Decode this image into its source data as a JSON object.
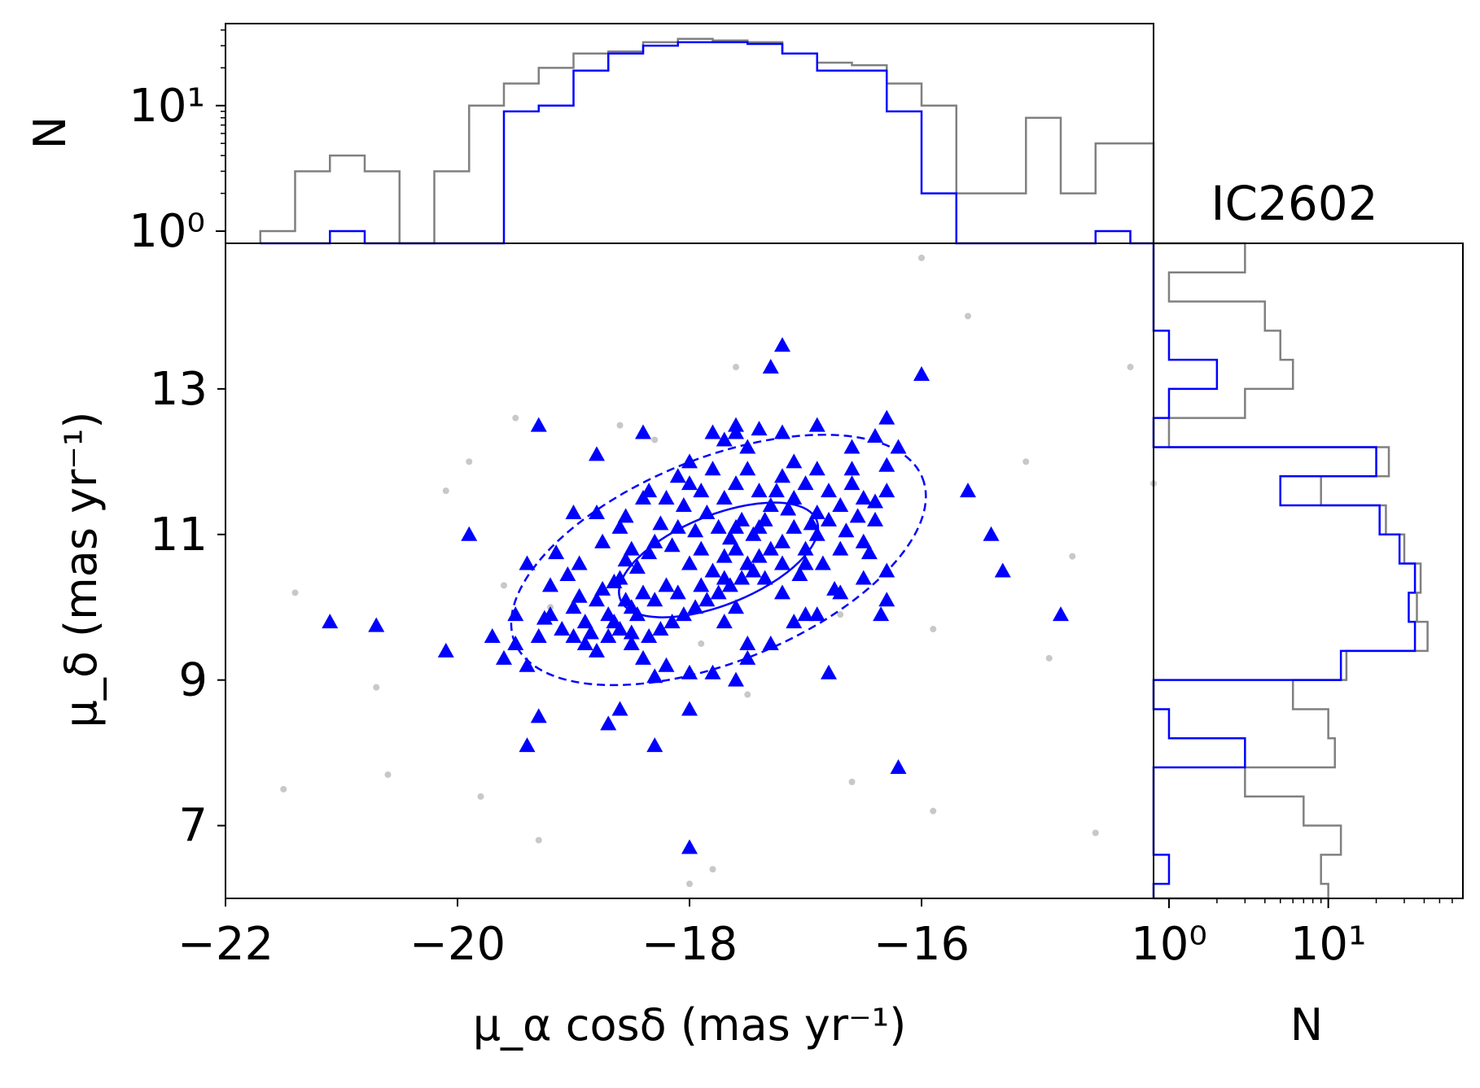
{
  "chart_data": {
    "type": "scatter",
    "title": "IC2602",
    "colors": {
      "members": "#0000ff",
      "field": "#c8c8c8",
      "field_hist": "#808080",
      "axes": "#000000"
    },
    "scatter": {
      "xlabel": "μ_α cosδ (mas yr⁻¹)",
      "ylabel": "μ_δ (mas yr⁻¹)",
      "xlim": [
        -22,
        -14.0
      ],
      "ylim": [
        6.0,
        15.0
      ],
      "xticks": [
        -22,
        -20,
        -18,
        -16
      ],
      "yticks": [
        7,
        9,
        11,
        13
      ],
      "grid": false,
      "members": {
        "marker": "triangle",
        "points": [
          [
            -17.2,
            13.6
          ],
          [
            -17.3,
            13.3
          ],
          [
            -16.0,
            13.2
          ],
          [
            -19.3,
            12.5
          ],
          [
            -18.4,
            12.4
          ],
          [
            -16.3,
            12.6
          ],
          [
            -16.9,
            12.5
          ],
          [
            -17.6,
            12.5
          ],
          [
            -17.4,
            12.45
          ],
          [
            -16.2,
            12.2
          ],
          [
            -18.8,
            12.1
          ],
          [
            -17.8,
            12.4
          ],
          [
            -17.7,
            12.3
          ],
          [
            -17.5,
            12.2
          ],
          [
            -17.1,
            12.0
          ],
          [
            -16.6,
            11.9
          ],
          [
            -16.3,
            11.95
          ],
          [
            -15.6,
            11.6
          ],
          [
            -15.4,
            11.0
          ],
          [
            -15.3,
            10.5
          ],
          [
            -14.8,
            9.9
          ],
          [
            -16.2,
            7.8
          ],
          [
            -19.0,
            11.3
          ],
          [
            -18.8,
            11.3
          ],
          [
            -18.6,
            11.1
          ],
          [
            -18.5,
            10.8
          ],
          [
            -18.3,
            10.9
          ],
          [
            -18.2,
            11.5
          ],
          [
            -18.1,
            11.8
          ],
          [
            -18.0,
            11.7
          ],
          [
            -17.9,
            11.6
          ],
          [
            -17.8,
            11.9
          ],
          [
            -17.7,
            11.5
          ],
          [
            -17.6,
            11.7
          ],
          [
            -17.5,
            11.9
          ],
          [
            -17.4,
            11.6
          ],
          [
            -17.3,
            11.4
          ],
          [
            -17.2,
            11.8
          ],
          [
            -17.1,
            11.5
          ],
          [
            -17.0,
            11.7
          ],
          [
            -16.9,
            11.9
          ],
          [
            -16.8,
            11.6
          ],
          [
            -16.7,
            11.4
          ],
          [
            -16.6,
            11.7
          ],
          [
            -16.5,
            11.5
          ],
          [
            -16.4,
            11.2
          ],
          [
            -16.3,
            11.6
          ],
          [
            -16.5,
            10.9
          ],
          [
            -16.7,
            10.8
          ],
          [
            -16.9,
            11.0
          ],
          [
            -17.0,
            10.6
          ],
          [
            -17.2,
            10.9
          ],
          [
            -17.4,
            10.7
          ],
          [
            -17.6,
            10.8
          ],
          [
            -17.8,
            10.5
          ],
          [
            -18.0,
            10.6
          ],
          [
            -18.2,
            10.3
          ],
          [
            -18.4,
            10.2
          ],
          [
            -18.6,
            10.4
          ],
          [
            -18.8,
            10.1
          ],
          [
            -19.0,
            10.0
          ],
          [
            -19.2,
            10.3
          ],
          [
            -19.4,
            10.6
          ],
          [
            -19.5,
            9.9
          ],
          [
            -19.3,
            9.6
          ],
          [
            -19.1,
            9.7
          ],
          [
            -18.9,
            9.8
          ],
          [
            -18.7,
            9.9
          ],
          [
            -18.5,
            10.0
          ],
          [
            -18.3,
            10.1
          ],
          [
            -18.1,
            10.2
          ],
          [
            -17.9,
            10.3
          ],
          [
            -17.7,
            10.4
          ],
          [
            -17.5,
            10.6
          ],
          [
            -17.3,
            10.8
          ],
          [
            -17.1,
            11.1
          ],
          [
            -16.9,
            11.3
          ],
          [
            -18.7,
            9.6
          ],
          [
            -18.6,
            9.7
          ],
          [
            -18.9,
            9.5
          ],
          [
            -19.0,
            9.6
          ],
          [
            -18.8,
            9.4
          ],
          [
            -18.5,
            9.5
          ],
          [
            -18.4,
            9.3
          ],
          [
            -18.2,
            9.2
          ],
          [
            -18.0,
            9.1
          ],
          [
            -17.8,
            9.1
          ],
          [
            -18.3,
            9.05
          ],
          [
            -18.6,
            8.6
          ],
          [
            -18.0,
            8.6
          ],
          [
            -17.6,
            9.0
          ],
          [
            -17.5,
            9.3
          ],
          [
            -17.3,
            9.5
          ],
          [
            -17.1,
            9.8
          ],
          [
            -16.9,
            9.9
          ],
          [
            -16.7,
            10.2
          ],
          [
            -16.5,
            10.4
          ],
          [
            -16.3,
            10.5
          ],
          [
            -16.3,
            10.1
          ],
          [
            -16.35,
            9.9
          ],
          [
            -17.5,
            9.5
          ],
          [
            -17.6,
            10.0
          ],
          [
            -17.7,
            9.8
          ],
          [
            -19.5,
            9.5
          ],
          [
            -19.6,
            9.3
          ],
          [
            -19.7,
            9.6
          ],
          [
            -19.4,
            9.2
          ],
          [
            -19.3,
            8.5
          ],
          [
            -19.4,
            8.1
          ],
          [
            -18.7,
            8.4
          ],
          [
            -18.3,
            8.1
          ],
          [
            -18.0,
            6.7
          ],
          [
            -20.1,
            9.4
          ],
          [
            -20.7,
            9.75
          ],
          [
            -21.1,
            9.8
          ],
          [
            -19.9,
            11.0
          ],
          [
            -16.8,
            9.1
          ],
          [
            -17.0,
            9.9
          ],
          [
            -17.2,
            10.2
          ],
          [
            -17.35,
            10.4
          ],
          [
            -17.45,
            11.0
          ],
          [
            -17.55,
            11.2
          ],
          [
            -17.65,
            10.95
          ],
          [
            -17.75,
            11.1
          ],
          [
            -17.85,
            11.3
          ],
          [
            -17.95,
            11.05
          ],
          [
            -18.05,
            11.4
          ],
          [
            -18.15,
            10.85
          ],
          [
            -18.25,
            11.15
          ],
          [
            -18.35,
            10.75
          ],
          [
            -18.45,
            10.55
          ],
          [
            -18.55,
            10.65
          ],
          [
            -18.65,
            10.35
          ],
          [
            -18.75,
            10.25
          ],
          [
            -18.85,
            9.65
          ],
          [
            -18.95,
            10.15
          ],
          [
            -19.05,
            10.45
          ],
          [
            -19.15,
            10.75
          ],
          [
            -19.25,
            9.85
          ],
          [
            -17.05,
            10.45
          ],
          [
            -16.85,
            10.6
          ],
          [
            -16.75,
            10.25
          ],
          [
            -16.65,
            11.05
          ],
          [
            -16.55,
            11.25
          ],
          [
            -16.45,
            10.75
          ],
          [
            -16.4,
            11.45
          ],
          [
            -16.6,
            12.2
          ],
          [
            -16.95,
            11.15
          ],
          [
            -17.15,
            11.35
          ],
          [
            -17.25,
            11.6
          ],
          [
            -17.35,
            11.2
          ],
          [
            -17.45,
            10.5
          ],
          [
            -17.55,
            10.4
          ],
          [
            -17.65,
            10.3
          ],
          [
            -17.75,
            10.2
          ],
          [
            -17.85,
            10.1
          ],
          [
            -17.95,
            10.0
          ],
          [
            -18.05,
            9.9
          ],
          [
            -18.15,
            9.8
          ],
          [
            -18.25,
            9.7
          ],
          [
            -18.35,
            9.6
          ],
          [
            -18.45,
            9.9
          ],
          [
            -18.55,
            10.1
          ],
          [
            -18.65,
            9.8
          ],
          [
            -18.35,
            11.6
          ],
          [
            -18.1,
            11.1
          ],
          [
            -17.9,
            10.8
          ],
          [
            -17.7,
            10.7
          ],
          [
            -17.6,
            11.1
          ],
          [
            -17.4,
            11.1
          ],
          [
            -17.2,
            10.6
          ],
          [
            -17.0,
            10.8
          ],
          [
            -16.8,
            11.2
          ],
          [
            -18.0,
            12.0
          ],
          [
            -17.6,
            12.4
          ],
          [
            -17.2,
            12.4
          ],
          [
            -16.4,
            12.35
          ],
          [
            -18.5,
            9.65
          ],
          [
            -19.2,
            9.9
          ],
          [
            -18.95,
            10.6
          ],
          [
            -18.75,
            10.9
          ],
          [
            -18.55,
            11.25
          ],
          [
            -18.4,
            11.5
          ]
        ]
      },
      "field": {
        "marker": "dot",
        "points": [
          [
            -21.5,
            7.5
          ],
          [
            -21.4,
            10.2
          ],
          [
            -20.7,
            8.9
          ],
          [
            -20.6,
            7.7
          ],
          [
            -20.1,
            11.6
          ],
          [
            -19.9,
            12.0
          ],
          [
            -19.8,
            7.4
          ],
          [
            -19.6,
            10.3
          ],
          [
            -19.5,
            12.6
          ],
          [
            -19.3,
            6.8
          ],
          [
            -19.2,
            10.0
          ],
          [
            -18.6,
            12.5
          ],
          [
            -18.3,
            12.3
          ],
          [
            -18.0,
            6.2
          ],
          [
            -17.9,
            9.5
          ],
          [
            -17.8,
            6.4
          ],
          [
            -17.6,
            13.3
          ],
          [
            -17.5,
            8.8
          ],
          [
            -16.7,
            9.9
          ],
          [
            -16.6,
            7.6
          ],
          [
            -15.9,
            7.2
          ],
          [
            -15.9,
            9.7
          ],
          [
            -15.6,
            14.0
          ],
          [
            -15.1,
            12.0
          ],
          [
            -14.9,
            9.3
          ],
          [
            -14.7,
            10.7
          ],
          [
            -14.5,
            6.9
          ],
          [
            -14.2,
            13.3
          ],
          [
            -14.0,
            11.7
          ],
          [
            -16.0,
            14.8
          ]
        ]
      }
    },
    "top_histogram": {
      "ylabel": "N",
      "scale": "log",
      "yticks": [
        "10⁰",
        "10¹"
      ],
      "bin_edges": [
        -21.7,
        -21.4,
        -21.1,
        -20.8,
        -20.5,
        -20.2,
        -19.9,
        -19.6,
        -19.3,
        -19.0,
        -18.7,
        -18.4,
        -18.1,
        -17.8,
        -17.5,
        -17.2,
        -16.9,
        -16.6,
        -16.3,
        -16.0,
        -15.7,
        -15.4,
        -15.1,
        -14.8,
        -14.5,
        -14.2,
        -13.9
      ],
      "all_counts": [
        1,
        3,
        4,
        3,
        0,
        3,
        10,
        15,
        20,
        26,
        27,
        32,
        34,
        33,
        32,
        26,
        22,
        21,
        15,
        10,
        2,
        2,
        8,
        2,
        5,
        5
      ],
      "member_counts": [
        0,
        0,
        1,
        0,
        0,
        0,
        0,
        9,
        10,
        19,
        26,
        30,
        32,
        32,
        31,
        26,
        19,
        19,
        9,
        2,
        0,
        0,
        0,
        0,
        1,
        0
      ],
      "ylim_counts": [
        0.8,
        45
      ]
    },
    "right_histogram": {
      "xlabel": "N",
      "scale": "log",
      "xticks": [
        "10⁰",
        "10¹"
      ],
      "bin_edges": [
        15.0,
        14.6,
        14.2,
        13.8,
        13.4,
        13.0,
        12.6,
        12.2,
        11.8,
        11.4,
        11.0,
        10.6,
        10.2,
        9.8,
        9.4,
        9.0,
        8.6,
        8.2,
        7.8,
        7.4,
        7.0,
        6.6,
        6.2,
        6.0
      ],
      "all_counts": [
        3,
        1,
        4,
        5,
        6,
        3,
        1,
        24,
        9,
        23,
        30,
        38,
        36,
        42,
        13,
        6,
        10,
        11,
        3,
        7,
        12,
        9,
        10
      ],
      "member_counts": [
        0,
        0,
        0,
        1,
        2,
        1,
        0,
        20,
        5,
        21,
        28,
        35,
        32,
        35,
        12,
        0,
        1,
        3,
        0,
        0,
        0,
        1,
        0
      ],
      "xlim_counts": [
        0.8,
        70
      ]
    }
  }
}
